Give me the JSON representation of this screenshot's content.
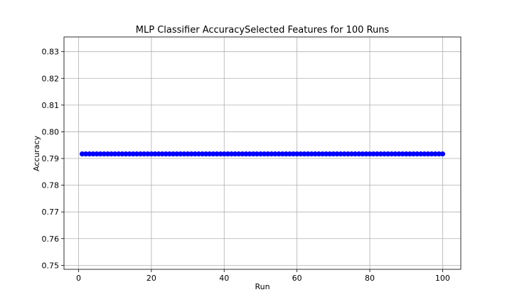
{
  "chart_data": {
    "type": "scatter",
    "title": "MLP Classifier AccuracySelected Features for 100 Runs",
    "xlabel": "Run",
    "ylabel": "Accuracy",
    "xlim": [
      -4,
      105
    ],
    "ylim": [
      0.7485,
      0.8355
    ],
    "xticks": [
      0,
      20,
      40,
      60,
      80,
      100
    ],
    "yticks": [
      0.75,
      0.76,
      0.77,
      0.78,
      0.79,
      0.8,
      0.81,
      0.82,
      0.83
    ],
    "ytick_labels": [
      "0.75",
      "0.76",
      "0.77",
      "0.78",
      "0.79",
      "0.80",
      "0.81",
      "0.82",
      "0.83"
    ],
    "grid": true,
    "series": [
      {
        "x_start": 1,
        "x_end": 100,
        "value": 0.7917,
        "color": "#0000ff",
        "marker": "circle"
      }
    ]
  }
}
